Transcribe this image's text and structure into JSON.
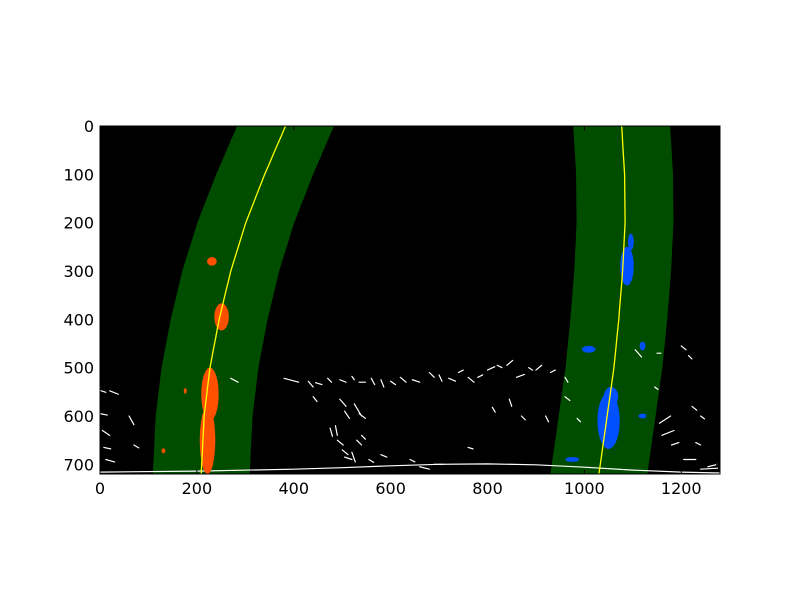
{
  "chart_data": {
    "type": "image",
    "title": "",
    "xlabel": "",
    "ylabel": "",
    "xlim": [
      0,
      1280
    ],
    "ylim": [
      720,
      0
    ],
    "x_ticks": [
      0,
      200,
      400,
      600,
      800,
      1000,
      1200
    ],
    "y_ticks": [
      0,
      100,
      200,
      300,
      400,
      500,
      600,
      700
    ],
    "x_tick_labels": [
      "0",
      "200",
      "400",
      "600",
      "800",
      "1000",
      "1200"
    ],
    "y_tick_labels": [
      "0",
      "100",
      "200",
      "300",
      "400",
      "500",
      "600",
      "700"
    ],
    "grid": false,
    "background_color": "#000000",
    "search_window_half_width": 100,
    "series": [
      {
        "kind": "left_lane_fit",
        "color": "#ffff00",
        "band_color": "#004d00",
        "points": [
          [
            383,
            0
          ],
          [
            340,
            100
          ],
          [
            301,
            200
          ],
          [
            270,
            300
          ],
          [
            246,
            400
          ],
          [
            227,
            500
          ],
          [
            215,
            600
          ],
          [
            209,
            720
          ]
        ]
      },
      {
        "kind": "right_lane_fit",
        "color": "#ffff00",
        "band_color": "#004d00",
        "points": [
          [
            1077,
            0
          ],
          [
            1083,
            100
          ],
          [
            1084,
            200
          ],
          [
            1079,
            300
          ],
          [
            1071,
            400
          ],
          [
            1061,
            500
          ],
          [
            1047,
            600
          ],
          [
            1030,
            720
          ]
        ]
      }
    ],
    "left_lane_pixels": {
      "color": "#ff5000",
      "blobs": [
        {
          "x": 231,
          "y": 280,
          "rx": 10,
          "ry": 9
        },
        {
          "x": 251,
          "y": 395,
          "rx": 15,
          "ry": 28
        },
        {
          "x": 227,
          "y": 555,
          "rx": 18,
          "ry": 55
        },
        {
          "x": 222,
          "y": 650,
          "rx": 16,
          "ry": 70
        },
        {
          "x": 131,
          "y": 672,
          "rx": 4,
          "ry": 5
        },
        {
          "x": 176,
          "y": 548,
          "rx": 3,
          "ry": 6
        }
      ]
    },
    "right_lane_pixels": {
      "color": "#0050ff",
      "blobs": [
        {
          "x": 1096,
          "y": 240,
          "rx": 6,
          "ry": 17
        },
        {
          "x": 1088,
          "y": 290,
          "rx": 14,
          "ry": 40
        },
        {
          "x": 1009,
          "y": 462,
          "rx": 14,
          "ry": 7
        },
        {
          "x": 1120,
          "y": 455,
          "rx": 6,
          "ry": 9
        },
        {
          "x": 1050,
          "y": 610,
          "rx": 23,
          "ry": 58
        },
        {
          "x": 1055,
          "y": 560,
          "rx": 15,
          "ry": 20
        },
        {
          "x": 1120,
          "y": 600,
          "rx": 8,
          "ry": 5
        },
        {
          "x": 975,
          "y": 690,
          "rx": 14,
          "ry": 5
        }
      ]
    },
    "noise_pixels": {
      "color": "#ffffff",
      "segments": [
        [
          [
            0,
            547
          ],
          [
            12,
            551
          ]
        ],
        [
          [
            0,
            595
          ],
          [
            15,
            598
          ]
        ],
        [
          [
            20,
            548
          ],
          [
            38,
            555
          ]
        ],
        [
          [
            5,
            630
          ],
          [
            20,
            640
          ]
        ],
        [
          [
            8,
            665
          ],
          [
            22,
            668
          ]
        ],
        [
          [
            12,
            690
          ],
          [
            30,
            695
          ]
        ],
        [
          [
            60,
            600
          ],
          [
            70,
            618
          ]
        ],
        [
          [
            70,
            660
          ],
          [
            80,
            666
          ]
        ],
        [
          [
            270,
            522
          ],
          [
            285,
            530
          ]
        ],
        [
          [
            380,
            522
          ],
          [
            410,
            530
          ]
        ],
        [
          [
            430,
            528
          ],
          [
            440,
            540
          ]
        ],
        [
          [
            445,
            531
          ],
          [
            458,
            535
          ]
        ],
        [
          [
            470,
            522
          ],
          [
            478,
            530
          ]
        ],
        [
          [
            495,
            525
          ],
          [
            508,
            530
          ]
        ],
        [
          [
            520,
            518
          ],
          [
            525,
            525
          ]
        ],
        [
          [
            535,
            530
          ],
          [
            548,
            530
          ]
        ],
        [
          [
            560,
            522
          ],
          [
            567,
            535
          ]
        ],
        [
          [
            580,
            525
          ],
          [
            586,
            540
          ]
        ],
        [
          [
            600,
            528
          ],
          [
            610,
            535
          ]
        ],
        [
          [
            620,
            520
          ],
          [
            632,
            530
          ]
        ],
        [
          [
            645,
            525
          ],
          [
            660,
            530
          ]
        ],
        [
          [
            680,
            510
          ],
          [
            690,
            520
          ]
        ],
        [
          [
            700,
            515
          ],
          [
            706,
            528
          ]
        ],
        [
          [
            720,
            522
          ],
          [
            734,
            528
          ]
        ],
        [
          [
            740,
            510
          ],
          [
            750,
            505
          ]
        ],
        [
          [
            760,
            520
          ],
          [
            772,
            530
          ]
        ],
        [
          [
            780,
            520
          ],
          [
            790,
            515
          ]
        ],
        [
          [
            800,
            505
          ],
          [
            815,
            498
          ]
        ],
        [
          [
            820,
            495
          ],
          [
            830,
            500
          ]
        ],
        [
          [
            840,
            495
          ],
          [
            852,
            485
          ]
        ],
        [
          [
            860,
            520
          ],
          [
            876,
            514
          ]
        ],
        [
          [
            885,
            500
          ],
          [
            893,
            505
          ]
        ],
        [
          [
            900,
            505
          ],
          [
            912,
            495
          ]
        ],
        [
          [
            930,
            510
          ],
          [
            940,
            505
          ]
        ],
        [
          [
            960,
            520
          ],
          [
            966,
            530
          ]
        ],
        [
          [
            495,
            565
          ],
          [
            508,
            580
          ]
        ],
        [
          [
            505,
            590
          ],
          [
            515,
            605
          ]
        ],
        [
          [
            525,
            575
          ],
          [
            540,
            600
          ]
        ],
        [
          [
            535,
            595
          ],
          [
            548,
            605
          ]
        ],
        [
          [
            440,
            560
          ],
          [
            448,
            570
          ]
        ],
        [
          [
            475,
            625
          ],
          [
            480,
            642
          ]
        ],
        [
          [
            486,
            620
          ],
          [
            490,
            640
          ]
        ],
        [
          [
            490,
            650
          ],
          [
            502,
            660
          ]
        ],
        [
          [
            500,
            670
          ],
          [
            512,
            680
          ]
        ],
        [
          [
            505,
            685
          ],
          [
            520,
            690
          ]
        ],
        [
          [
            520,
            675
          ],
          [
            527,
            695
          ]
        ],
        [
          [
            530,
            650
          ],
          [
            540,
            660
          ]
        ],
        [
          [
            540,
            640
          ],
          [
            548,
            648
          ]
        ],
        [
          [
            555,
            690
          ],
          [
            565,
            696
          ]
        ],
        [
          [
            580,
            680
          ],
          [
            592,
            685
          ]
        ],
        [
          [
            640,
            690
          ],
          [
            650,
            695
          ]
        ],
        [
          [
            660,
            705
          ],
          [
            680,
            710
          ]
        ],
        [
          [
            690,
            700
          ],
          [
            710,
            700
          ]
        ],
        [
          [
            760,
            665
          ],
          [
            770,
            668
          ]
        ],
        [
          [
            810,
            582
          ],
          [
            816,
            592
          ]
        ],
        [
          [
            845,
            565
          ],
          [
            850,
            580
          ]
        ],
        [
          [
            870,
            600
          ],
          [
            878,
            608
          ]
        ],
        [
          [
            920,
            600
          ],
          [
            926,
            612
          ]
        ],
        [
          [
            960,
            560
          ],
          [
            970,
            568
          ]
        ],
        [
          [
            985,
            605
          ],
          [
            992,
            612
          ]
        ],
        [
          [
            1105,
            463
          ],
          [
            1118,
            478
          ]
        ],
        [
          [
            1150,
            470
          ],
          [
            1158,
            470
          ]
        ],
        [
          [
            1200,
            455
          ],
          [
            1210,
            463
          ]
        ],
        [
          [
            1215,
            475
          ],
          [
            1222,
            482
          ]
        ],
        [
          [
            1145,
            540
          ],
          [
            1152,
            545
          ]
        ],
        [
          [
            1155,
            615
          ],
          [
            1178,
            600
          ]
        ],
        [
          [
            1160,
            640
          ],
          [
            1185,
            630
          ]
        ],
        [
          [
            1180,
            660
          ],
          [
            1195,
            655
          ]
        ],
        [
          [
            1205,
            690
          ],
          [
            1230,
            690
          ]
        ],
        [
          [
            1230,
            655
          ],
          [
            1240,
            660
          ]
        ],
        [
          [
            1255,
            705
          ],
          [
            1275,
            700
          ]
        ],
        [
          [
            1240,
            710
          ],
          [
            1275,
            708
          ]
        ],
        [
          [
            1222,
            580
          ],
          [
            1232,
            588
          ]
        ],
        [
          [
            1240,
            600
          ],
          [
            1248,
            606
          ]
        ]
      ]
    },
    "road_edge": {
      "color": "#ffffff",
      "points": [
        [
          0,
          716
        ],
        [
          200,
          714
        ],
        [
          400,
          710
        ],
        [
          500,
          707
        ],
        [
          600,
          703
        ],
        [
          700,
          700
        ],
        [
          800,
          699
        ],
        [
          900,
          701
        ],
        [
          1000,
          706
        ],
        [
          1100,
          712
        ],
        [
          1200,
          716
        ],
        [
          1280,
          718
        ]
      ]
    }
  }
}
